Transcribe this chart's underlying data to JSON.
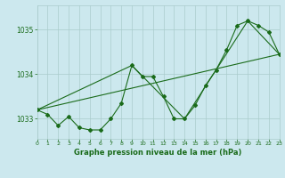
{
  "title": "Graphe pression niveau de la mer (hPa)",
  "bg_color": "#cce8ee",
  "grid_color": "#aacccc",
  "line_color": "#1a6b1a",
  "x_min": 0,
  "x_max": 23,
  "y_min": 1032.55,
  "y_max": 1035.55,
  "yticks": [
    1033,
    1034,
    1035
  ],
  "xticks": [
    0,
    1,
    2,
    3,
    4,
    5,
    6,
    7,
    8,
    9,
    10,
    11,
    12,
    13,
    14,
    15,
    16,
    17,
    18,
    19,
    20,
    21,
    22,
    23
  ],
  "main_data": [
    [
      0,
      1033.2
    ],
    [
      1,
      1033.1
    ],
    [
      2,
      1032.85
    ],
    [
      3,
      1033.05
    ],
    [
      4,
      1032.8
    ],
    [
      5,
      1032.75
    ],
    [
      6,
      1032.75
    ],
    [
      7,
      1033.0
    ],
    [
      8,
      1033.35
    ],
    [
      9,
      1034.2
    ],
    [
      10,
      1033.95
    ],
    [
      11,
      1033.95
    ],
    [
      12,
      1033.5
    ],
    [
      13,
      1033.0
    ],
    [
      14,
      1033.0
    ],
    [
      15,
      1033.3
    ],
    [
      16,
      1033.75
    ],
    [
      17,
      1034.1
    ],
    [
      18,
      1034.55
    ],
    [
      19,
      1035.1
    ],
    [
      20,
      1035.2
    ],
    [
      21,
      1035.1
    ],
    [
      22,
      1034.95
    ],
    [
      23,
      1034.45
    ]
  ],
  "trend_line": [
    [
      0,
      1033.2
    ],
    [
      23,
      1034.45
    ]
  ],
  "envelope_line": [
    [
      0,
      1033.2
    ],
    [
      9,
      1034.2
    ],
    [
      14,
      1033.0
    ],
    [
      20,
      1035.2
    ],
    [
      23,
      1034.45
    ]
  ]
}
